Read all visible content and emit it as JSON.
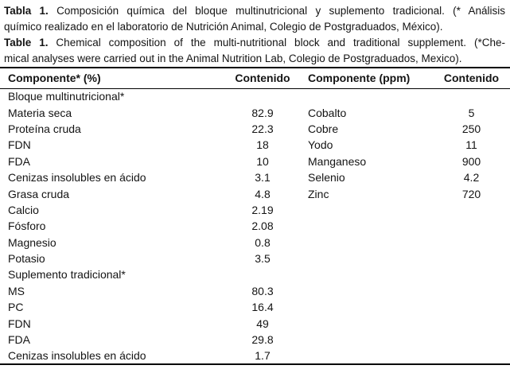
{
  "page": {
    "background_color": "#ffffff",
    "text_color": "#141414",
    "rule_color": "#000000"
  },
  "caption": {
    "spanish": {
      "label": "Tabla 1.",
      "line1": " Composición química del bloque multinutricional y suplemento tradicional. (* Análisis",
      "line2": "químico realizado en el laboratorio de Nutrición Animal, Colegio de Postgraduados, México)."
    },
    "english": {
      "label": "Table 1.",
      "line1": " Chemical composition of the multi-nutritional block and traditional supplement. (*Che-",
      "line2": "mical analyses were carried out in the Animal Nutrition Lab, Colegio de Postgraduados, Mexico)."
    }
  },
  "table": {
    "headers": {
      "col1": "Componente* (%)",
      "col2": "Contenido",
      "col3": "Componente (ppm)",
      "col4": "Contenido"
    },
    "rows": [
      {
        "c1": "Bloque multinutricional*",
        "v1": "",
        "c2": "",
        "v2": ""
      },
      {
        "c1": "Materia seca",
        "v1": "82.9",
        "c2": "Cobalto",
        "v2": "5"
      },
      {
        "c1": "Proteína cruda",
        "v1": "22.3",
        "c2": "Cobre",
        "v2": "250"
      },
      {
        "c1": "FDN",
        "v1": "18",
        "c2": "Yodo",
        "v2": "11"
      },
      {
        "c1": "FDA",
        "v1": "10",
        "c2": "Manganeso",
        "v2": "900"
      },
      {
        "c1": "Cenizas insolubles en ácido",
        "v1": "3.1",
        "c2": "Selenio",
        "v2": "4.2"
      },
      {
        "c1": "Grasa cruda",
        "v1": "4.8",
        "c2": "Zinc",
        "v2": "720"
      },
      {
        "c1": "Calcio",
        "v1": "2.19",
        "c2": "",
        "v2": ""
      },
      {
        "c1": "Fósforo",
        "v1": "2.08",
        "c2": "",
        "v2": ""
      },
      {
        "c1": "Magnesio",
        "v1": "0.8",
        "c2": "",
        "v2": ""
      },
      {
        "c1": "Potasio",
        "v1": "3.5",
        "c2": "",
        "v2": ""
      },
      {
        "c1": "Suplemento tradicional*",
        "v1": "",
        "c2": "",
        "v2": ""
      },
      {
        "c1": "MS",
        "v1": "80.3",
        "c2": "",
        "v2": ""
      },
      {
        "c1": "PC",
        "v1": "16.4",
        "c2": "",
        "v2": ""
      },
      {
        "c1": "FDN",
        "v1": "49",
        "c2": "",
        "v2": ""
      },
      {
        "c1": "FDA",
        "v1": "29.8",
        "c2": "",
        "v2": ""
      },
      {
        "c1": "Cenizas insolubles en ácido",
        "v1": "1.7",
        "c2": "",
        "v2": ""
      }
    ]
  }
}
